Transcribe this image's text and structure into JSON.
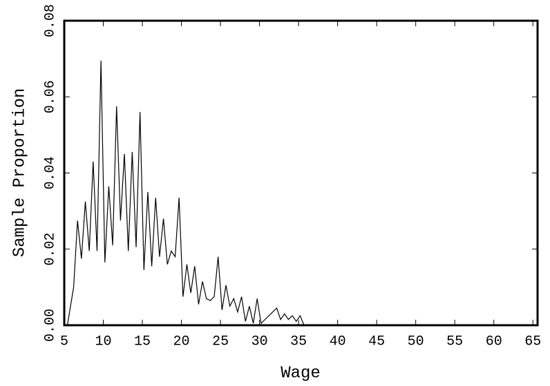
{
  "chart_data": {
    "type": "line",
    "x_label": "Wage",
    "y_label": "Sample Proportion",
    "x": [
      5.4,
      6.2,
      6.7,
      7.2,
      7.7,
      8.2,
      8.7,
      9.2,
      9.7,
      10.2,
      10.7,
      11.2,
      11.7,
      12.2,
      12.7,
      13.2,
      13.7,
      14.2,
      14.7,
      15.2,
      15.7,
      16.2,
      16.7,
      17.2,
      17.7,
      18.2,
      18.7,
      19.2,
      19.7,
      20.2,
      20.7,
      21.2,
      21.7,
      22.2,
      22.7,
      23.2,
      23.7,
      24.2,
      24.7,
      25.2,
      25.7,
      26.2,
      26.7,
      27.2,
      27.7,
      28.2,
      28.7,
      29.2,
      29.7,
      30.2,
      31.2,
      32.2,
      32.7,
      33.2,
      33.7,
      34.2,
      34.7,
      35.2,
      35.7
    ],
    "series": [
      {
        "color": "#000000",
        "values": [
          0,
          0.01,
          0.0275,
          0.0175,
          0.0325,
          0.0195,
          0.043,
          0.0195,
          0.0695,
          0.0165,
          0.0365,
          0.021,
          0.0575,
          0.0275,
          0.045,
          0.0195,
          0.0455,
          0.0205,
          0.056,
          0.0145,
          0.035,
          0.0155,
          0.0335,
          0.018,
          0.028,
          0.016,
          0.0195,
          0.018,
          0.0335,
          0.0075,
          0.016,
          0.0085,
          0.0155,
          0.0055,
          0.0115,
          0.007,
          0.0065,
          0.0075,
          0.018,
          0.004,
          0.0105,
          0.005,
          0.007,
          0.0035,
          0.0075,
          0.001,
          0.005,
          0.0005,
          0.007,
          0.0005,
          0.0025,
          0.0045,
          0.0015,
          0.003,
          0.0015,
          0.0025,
          0.001,
          0.0025,
          0
        ]
      }
    ],
    "xlim": [
      5,
      65.6
    ],
    "ylim": [
      0,
      0.08
    ],
    "xticks": [
      5,
      10,
      15,
      20,
      25,
      30,
      35,
      40,
      45,
      50,
      55,
      60,
      65
    ],
    "yticks": [
      {
        "value": 0,
        "label": "0.00"
      },
      {
        "value": 0.02,
        "label": "0.02"
      },
      {
        "value": 0.04,
        "label": "0.04"
      },
      {
        "value": 0.06,
        "label": "0.06"
      },
      {
        "value": 0.08,
        "label": "0.08"
      }
    ]
  }
}
